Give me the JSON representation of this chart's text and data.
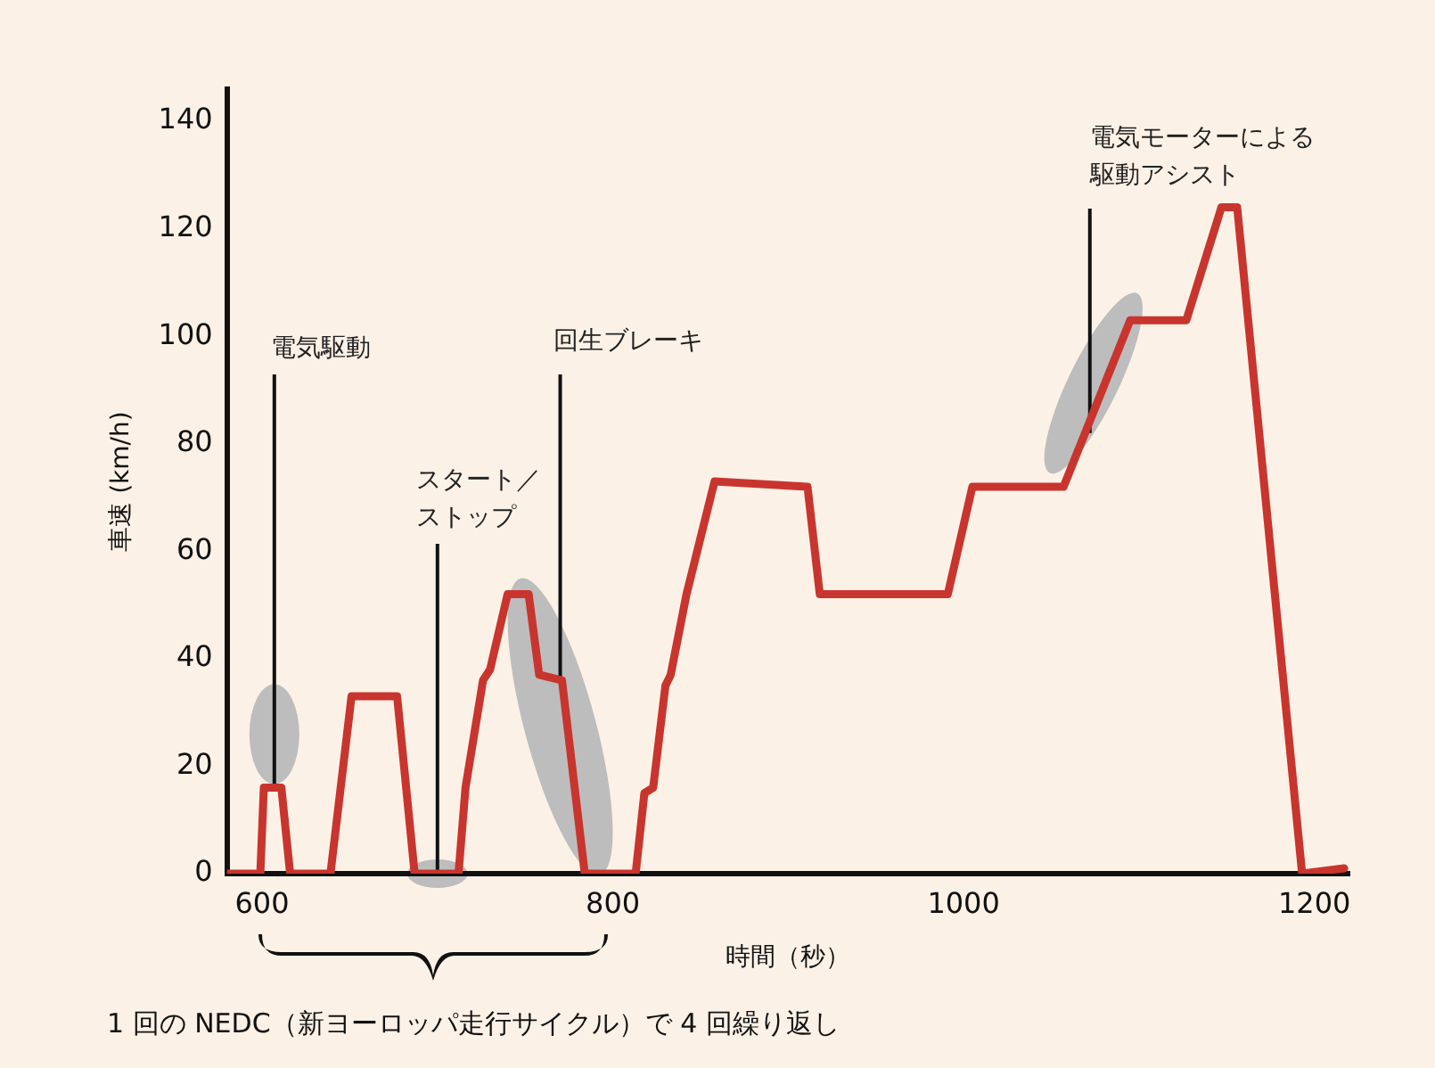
{
  "chart_data": {
    "type": "line",
    "xlabel": "時間（秒）",
    "ylabel": "車速 (km/h)",
    "xlim": [
      580,
      1220
    ],
    "xticks": [
      600,
      800,
      1000,
      1200
    ],
    "ylim": [
      0,
      146
    ],
    "yticks": [
      0,
      20,
      40,
      60,
      80,
      100,
      120,
      140
    ],
    "grid": false,
    "legend": false,
    "marker": "none",
    "line_style": "solid",
    "series": [
      {
        "color": "#c8352e",
        "x": [
          580,
          599,
          601,
          611,
          616,
          639,
          651,
          677,
          687,
          712,
          716,
          726,
          730,
          740,
          752,
          758,
          771,
          784,
          813,
          818,
          823,
          830,
          833,
          842,
          858,
          911,
          918,
          991,
          1005,
          1057,
          1095,
          1127,
          1147,
          1156,
          1193,
          1217
        ],
        "values": [
          0,
          0,
          16,
          16,
          0,
          0,
          33,
          33,
          0,
          0,
          16,
          36,
          38,
          52,
          52,
          37,
          36,
          0,
          0,
          15,
          16,
          35,
          37,
          52,
          73,
          72,
          52,
          52,
          72,
          72,
          103,
          103,
          124,
          124,
          0,
          1
        ]
      }
    ],
    "annotations": [
      {
        "text": "電気駆動",
        "x": 607,
        "y": 16
      },
      {
        "text": "スタート／ストップ",
        "x": 700,
        "y": 0
      },
      {
        "text": "回生ブレーキ",
        "x": 770,
        "y": 36
      },
      {
        "text": "電気モーターによる駆動アシスト",
        "x": 1072,
        "y": 82
      },
      "1 回の NEDC（新ヨーロッパ走行サイクル）で 4 回繰り返し"
    ]
  }
}
